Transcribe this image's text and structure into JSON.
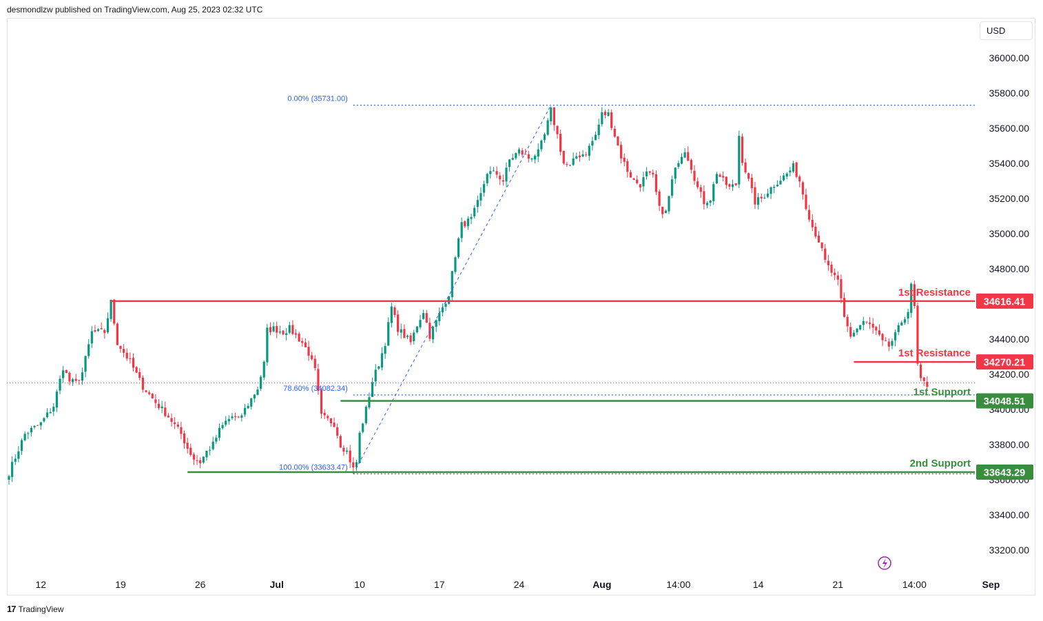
{
  "header": {
    "published": "desmondlzw published on TradingView.com, Aug 25, 2023 02:32 UTC"
  },
  "currency": "USD",
  "footer": {
    "brand": "TradingView",
    "logo": "tradingview-logo-icon"
  },
  "colors": {
    "up": "#089981",
    "down": "#f23645",
    "resistance": "#f23645",
    "support": "#388e3c",
    "fib": "#2962ff",
    "price_line": "#f23645"
  },
  "chart_data": {
    "type": "candlestick",
    "symbol_price_axis": "right",
    "ylim": [
      33080,
      36260
    ],
    "y_ticks": [
      33200,
      33400,
      33600,
      33800,
      34000,
      34200,
      34400,
      34600,
      34800,
      35000,
      35200,
      35400,
      35600,
      35800,
      36000
    ],
    "y_tick_labels": [
      "33200.00",
      "33400.00",
      "33600.00",
      "33800.00",
      "34000.00",
      "34200.00",
      "34400.00",
      "34600.00",
      "34800.00",
      "35000.00",
      "35200.00",
      "35400.00",
      "35600.00",
      "35800.00",
      "36000.00"
    ],
    "x_tick_labels": [
      {
        "label": "12",
        "bar": 10
      },
      {
        "label": "19",
        "bar": 35
      },
      {
        "label": "26",
        "bar": 60
      },
      {
        "label": "Jul",
        "bar": 84,
        "bold": true
      },
      {
        "label": "10",
        "bar": 110
      },
      {
        "label": "17",
        "bar": 135
      },
      {
        "label": "24",
        "bar": 160
      },
      {
        "label": "Aug",
        "bar": 186,
        "bold": true
      },
      {
        "label": "14:00",
        "bar": 210
      },
      {
        "label": "14",
        "bar": 235
      },
      {
        "label": "21",
        "bar": 260
      },
      {
        "label": "14:00",
        "bar": 284
      },
      {
        "label": "Sep",
        "bar": 308,
        "bold": true
      }
    ],
    "anchors": [
      [
        0,
        33640
      ],
      [
        5,
        33860
      ],
      [
        10,
        33920
      ],
      [
        14,
        34020
      ],
      [
        17,
        34240
      ],
      [
        19,
        34160
      ],
      [
        21,
        34150
      ],
      [
        23,
        34210
      ],
      [
        26,
        34440
      ],
      [
        30,
        34440
      ],
      [
        32,
        34610
      ],
      [
        34,
        34380
      ],
      [
        38,
        34270
      ],
      [
        42,
        34130
      ],
      [
        46,
        34040
      ],
      [
        50,
        33960
      ],
      [
        54,
        33860
      ],
      [
        56,
        33780
      ],
      [
        58,
        33720
      ],
      [
        60,
        33700
      ],
      [
        62,
        33760
      ],
      [
        64,
        33800
      ],
      [
        66,
        33880
      ],
      [
        68,
        33930
      ],
      [
        70,
        33960
      ],
      [
        72,
        33940
      ],
      [
        74,
        34000
      ],
      [
        76,
        34060
      ],
      [
        78,
        34120
      ],
      [
        80,
        34260
      ],
      [
        81,
        34450
      ],
      [
        83,
        34460
      ],
      [
        86,
        34440
      ],
      [
        88,
        34460
      ],
      [
        90,
        34420
      ],
      [
        92,
        34380
      ],
      [
        94,
        34320
      ],
      [
        96,
        34220
      ],
      [
        98,
        33960
      ],
      [
        100,
        33940
      ],
      [
        102,
        33920
      ],
      [
        104,
        33800
      ],
      [
        106,
        33760
      ],
      [
        108,
        33660
      ],
      [
        109,
        33700
      ],
      [
        110,
        33860
      ],
      [
        112,
        34000
      ],
      [
        114,
        34160
      ],
      [
        116,
        34260
      ],
      [
        118,
        34380
      ],
      [
        120,
        34580
      ],
      [
        122,
        34460
      ],
      [
        124,
        34420
      ],
      [
        126,
        34380
      ],
      [
        128,
        34480
      ],
      [
        130,
        34560
      ],
      [
        132,
        34420
      ],
      [
        134,
        34500
      ],
      [
        136,
        34580
      ],
      [
        138,
        34660
      ],
      [
        140,
        34880
      ],
      [
        142,
        35050
      ],
      [
        145,
        35080
      ],
      [
        148,
        35220
      ],
      [
        150,
        35350
      ],
      [
        153,
        35340
      ],
      [
        155,
        35300
      ],
      [
        157,
        35420
      ],
      [
        160,
        35470
      ],
      [
        163,
        35430
      ],
      [
        166,
        35460
      ],
      [
        168,
        35560
      ],
      [
        170,
        35700
      ],
      [
        172,
        35560
      ],
      [
        174,
        35400
      ],
      [
        176,
        35380
      ],
      [
        178,
        35440
      ],
      [
        181,
        35460
      ],
      [
        184,
        35560
      ],
      [
        186,
        35680
      ],
      [
        188,
        35680
      ],
      [
        190,
        35560
      ],
      [
        192,
        35440
      ],
      [
        194,
        35360
      ],
      [
        196,
        35300
      ],
      [
        198,
        35280
      ],
      [
        200,
        35340
      ],
      [
        202,
        35320
      ],
      [
        204,
        35140
      ],
      [
        206,
        35120
      ],
      [
        208,
        35300
      ],
      [
        210,
        35420
      ],
      [
        212,
        35480
      ],
      [
        214,
        35380
      ],
      [
        216,
        35260
      ],
      [
        218,
        35180
      ],
      [
        220,
        35200
      ],
      [
        222,
        35350
      ],
      [
        224,
        35300
      ],
      [
        226,
        35260
      ],
      [
        228,
        35280
      ],
      [
        229,
        35560
      ],
      [
        230,
        35420
      ],
      [
        232,
        35300
      ],
      [
        234,
        35180
      ],
      [
        236,
        35200
      ],
      [
        238,
        35240
      ],
      [
        240,
        35280
      ],
      [
        242,
        35310
      ],
      [
        244,
        35340
      ],
      [
        246,
        35380
      ],
      [
        248,
        35300
      ],
      [
        250,
        35160
      ],
      [
        252,
        35040
      ],
      [
        254,
        34960
      ],
      [
        256,
        34840
      ],
      [
        258,
        34780
      ],
      [
        260,
        34720
      ],
      [
        262,
        34520
      ],
      [
        264,
        34420
      ],
      [
        266,
        34460
      ],
      [
        268,
        34500
      ],
      [
        270,
        34480
      ],
      [
        272,
        34440
      ],
      [
        274,
        34380
      ],
      [
        276,
        34360
      ],
      [
        278,
        34420
      ],
      [
        280,
        34500
      ],
      [
        282,
        34560
      ],
      [
        283,
        34700
      ],
      [
        284,
        34580
      ],
      [
        285,
        34250
      ],
      [
        286,
        34160
      ],
      [
        288,
        34140
      ]
    ],
    "price_line": 34150,
    "levels": [
      {
        "name": "1st Resistance",
        "price": 34616.41,
        "label": "34616.41",
        "color": "#f23645",
        "from_bar": 32
      },
      {
        "name": "1st Resistance",
        "price": 34270.21,
        "label": "34270.21",
        "color": "#f23645",
        "from_bar": 265
      },
      {
        "name": "1st Support",
        "price": 34048.51,
        "label": "34048.51",
        "color": "#388e3c",
        "from_bar": 104
      },
      {
        "name": "2nd Support",
        "price": 33643.29,
        "label": "33643.29",
        "color": "#388e3c",
        "from_bar": 56
      }
    ],
    "fib": [
      {
        "label": "0.00% (35731.00)",
        "price": 35731.0,
        "from_bar": 108
      },
      {
        "label": "78.60% (34082.34)",
        "price": 34082.34,
        "from_bar": 108
      },
      {
        "label": "100.00% (33633.47)",
        "price": 33633.47,
        "from_bar": 108
      }
    ],
    "fib_trend": {
      "from": [
        108,
        33633.47
      ],
      "to": [
        170,
        35731.0
      ]
    }
  }
}
